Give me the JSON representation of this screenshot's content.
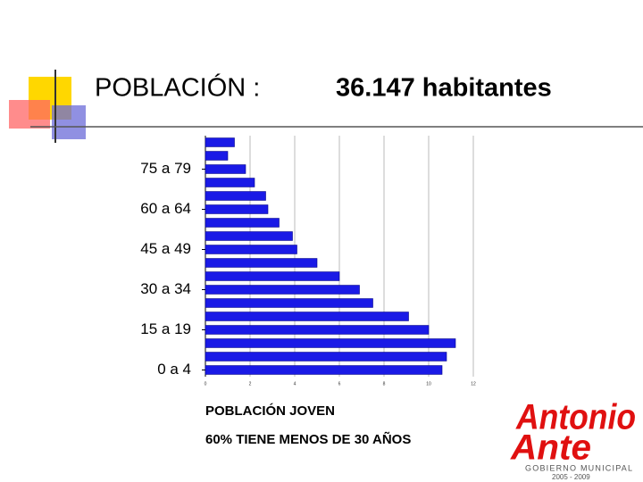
{
  "slide": {
    "title": "POBLACIÓN :",
    "population": "36.147 habitantes",
    "caption": "POBLACIÓN  JOVEN",
    "note": "60% TIENE MENOS DE 30 AÑOS",
    "logo": {
      "name1": "Antonio",
      "name2": "Ante",
      "line": "GOBIERNO MUNICIPAL",
      "years": "2005 - 2009"
    }
  },
  "chart_data": {
    "type": "hbar",
    "categories": [
      null,
      null,
      "75 a 79",
      null,
      null,
      "60 a 64",
      null,
      null,
      "45 a 49",
      null,
      null,
      "30 a 34",
      null,
      null,
      "15 a 19",
      null,
      null,
      "0 a 4"
    ],
    "values": [
      1.3,
      1.0,
      1.8,
      2.2,
      2.7,
      2.8,
      3.3,
      3.9,
      4.1,
      5.0,
      6.0,
      6.9,
      7.5,
      9.1,
      10.0,
      11.2,
      10.8,
      10.6
    ],
    "color": "#1a1ae6",
    "xlim": [
      0,
      12
    ],
    "xticks": [
      0,
      2,
      4,
      6,
      8,
      10,
      12
    ],
    "grid": true
  }
}
